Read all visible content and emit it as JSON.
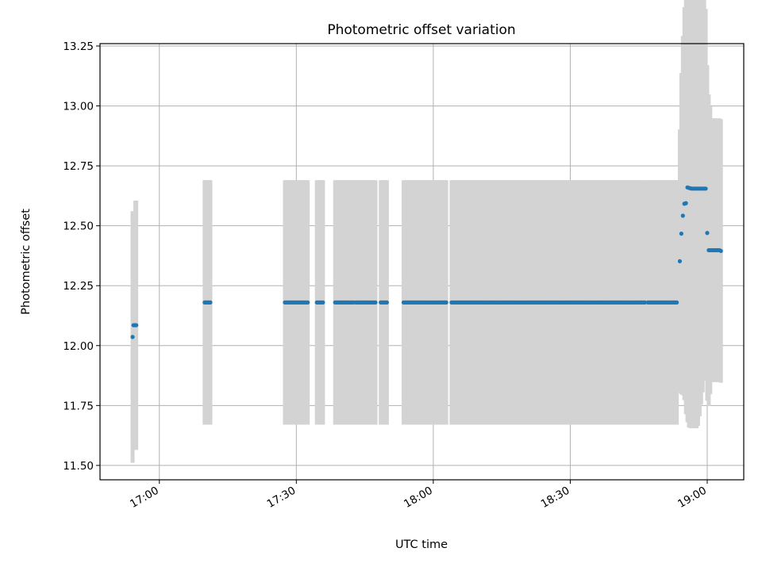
{
  "chart_data": {
    "type": "scatter",
    "title": "Photometric offset variation",
    "xlabel": "UTC time",
    "ylabel": "Photometric offset",
    "xlim": [
      "16:47",
      "19:08"
    ],
    "ylim": [
      11.44,
      13.26
    ],
    "x_ticks": [
      "17:00",
      "17:30",
      "18:00",
      "18:30",
      "19:00"
    ],
    "y_ticks": [
      "11.50",
      "11.75",
      "12.00",
      "12.25",
      "12.50",
      "12.75",
      "13.00",
      "13.25"
    ],
    "grid": true,
    "colors": {
      "marker": "#1f77b4",
      "errorbar": "#d3d3d3",
      "grid": "#b0b0b0"
    },
    "points": [
      {
        "x": "16:54:08",
        "y": 12.036,
        "err": 0.525
      },
      {
        "x": "16:54:20",
        "y": 12.085,
        "err": 0.475
      },
      {
        "x": "16:54:32",
        "y": 12.085,
        "err": 0.475
      },
      {
        "x": "16:54:44",
        "y": 12.085,
        "err": 0.52
      },
      {
        "x": "16:54:56",
        "y": 12.085,
        "err": 0.52
      },
      {
        "x": "17:09:55",
        "y": 12.18,
        "err": 0.51
      },
      {
        "x": "17:10:10",
        "y": 12.18,
        "err": 0.51
      },
      {
        "x": "17:10:25",
        "y": 12.18,
        "err": 0.51
      },
      {
        "x": "17:10:40",
        "y": 12.18,
        "err": 0.51
      },
      {
        "x": "17:10:55",
        "y": 12.18,
        "err": 0.51
      },
      {
        "x": "17:11:10",
        "y": 12.18,
        "err": 0.51
      },
      {
        "x": "19:03:00",
        "y": 12.395,
        "err": 0.55
      }
    ],
    "point_runs": [
      {
        "start": "17:27:30",
        "end": "17:32:30",
        "step_seconds": 20,
        "y": 12.18,
        "err": 0.51
      },
      {
        "start": "17:34:30",
        "end": "17:36:00",
        "step_seconds": 20,
        "y": 12.18,
        "err": 0.51
      },
      {
        "start": "17:38:30",
        "end": "17:42:30",
        "step_seconds": 20,
        "y": 12.18,
        "err": 0.51
      },
      {
        "start": "17:43:00",
        "end": "17:47:30",
        "step_seconds": 20,
        "y": 12.18,
        "err": 0.51
      },
      {
        "start": "17:48:30",
        "end": "17:50:00",
        "step_seconds": 20,
        "y": 12.18,
        "err": 0.51
      },
      {
        "start": "17:53:30",
        "end": "18:03:00",
        "step_seconds": 20,
        "y": 12.18,
        "err": 0.51
      },
      {
        "start": "18:04:00",
        "end": "18:46:30",
        "step_seconds": 20,
        "y": 12.18,
        "err": 0.51
      },
      {
        "start": "18:47:00",
        "end": "18:53:30",
        "step_seconds": 20,
        "y": 12.18,
        "err": 0.51
      }
    ],
    "ramp_points": [
      {
        "x": "18:54:00",
        "y": 12.352,
        "err": 0.55
      },
      {
        "x": "18:54:20",
        "y": 12.467,
        "err": 0.67
      },
      {
        "x": "18:54:40",
        "y": 12.542,
        "err": 0.75
      },
      {
        "x": "18:55:00",
        "y": 12.592,
        "err": 0.82
      },
      {
        "x": "18:55:20",
        "y": 12.594,
        "err": 0.88
      },
      {
        "x": "18:55:40",
        "y": 12.66,
        "err": 0.98
      },
      {
        "x": "18:56:00",
        "y": 12.658,
        "err": 1.0
      },
      {
        "x": "18:56:20",
        "y": 12.656,
        "err": 1.0
      },
      {
        "x": "18:56:40",
        "y": 12.655,
        "err": 1.0
      },
      {
        "x": "18:57:00",
        "y": 12.655,
        "err": 1.0
      },
      {
        "x": "18:57:20",
        "y": 12.655,
        "err": 1.0
      },
      {
        "x": "18:57:40",
        "y": 12.655,
        "err": 1.0
      },
      {
        "x": "18:58:00",
        "y": 12.655,
        "err": 0.99
      },
      {
        "x": "18:58:20",
        "y": 12.655,
        "err": 0.95
      },
      {
        "x": "18:58:40",
        "y": 12.655,
        "err": 0.9
      },
      {
        "x": "18:59:00",
        "y": 12.655,
        "err": 0.85
      },
      {
        "x": "18:59:20",
        "y": 12.655,
        "err": 0.8
      },
      {
        "x": "18:59:40",
        "y": 12.655,
        "err": 0.75
      },
      {
        "x": "19:00:00",
        "y": 12.47,
        "err": 0.7
      },
      {
        "x": "19:00:20",
        "y": 12.398,
        "err": 0.65
      },
      {
        "x": "19:00:40",
        "y": 12.398,
        "err": 0.6
      },
      {
        "x": "19:01:00",
        "y": 12.398,
        "err": 0.55
      },
      {
        "x": "19:01:20",
        "y": 12.398,
        "err": 0.55
      },
      {
        "x": "19:01:40",
        "y": 12.398,
        "err": 0.55
      },
      {
        "x": "19:02:00",
        "y": 12.398,
        "err": 0.55
      },
      {
        "x": "19:02:20",
        "y": 12.398,
        "err": 0.55
      },
      {
        "x": "19:02:40",
        "y": 12.398,
        "err": 0.55
      }
    ]
  }
}
